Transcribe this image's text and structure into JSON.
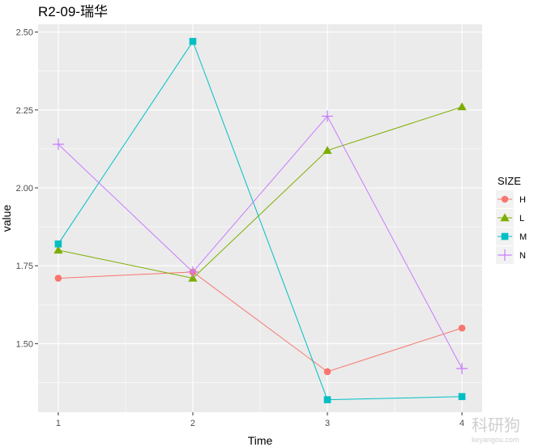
{
  "chart_data": {
    "type": "line",
    "title": "R2-09-瑞华",
    "xlabel": "Time",
    "ylabel": "value",
    "x": [
      1,
      2,
      3,
      4
    ],
    "x_tick_labels": [
      "1",
      "2",
      "3",
      "4"
    ],
    "y_ticks": [
      1.5,
      1.75,
      2.0,
      2.25,
      2.5
    ],
    "y_tick_labels": [
      "1.50",
      "1.75",
      "2.00",
      "2.25",
      "2.50"
    ],
    "xlim": [
      0.85,
      4.15
    ],
    "ylim": [
      1.28,
      2.525
    ],
    "grid": true,
    "legend_title": "SIZE",
    "legend_position": "right",
    "series": [
      {
        "name": "H",
        "values": [
          1.71,
          1.73,
          1.41,
          1.55
        ],
        "color": "#F8766D",
        "marker": "circle"
      },
      {
        "name": "L",
        "values": [
          1.8,
          1.71,
          2.12,
          2.26
        ],
        "color": "#7CAE00",
        "marker": "triangle"
      },
      {
        "name": "M",
        "values": [
          1.82,
          2.47,
          1.32,
          1.33
        ],
        "color": "#00BFC4",
        "marker": "square"
      },
      {
        "name": "N",
        "values": [
          2.14,
          1.73,
          2.23,
          1.42
        ],
        "color": "#C77CFF",
        "marker": "plus"
      }
    ]
  },
  "watermark": {
    "text": "科研狗",
    "subtext": "keyangou.com"
  }
}
